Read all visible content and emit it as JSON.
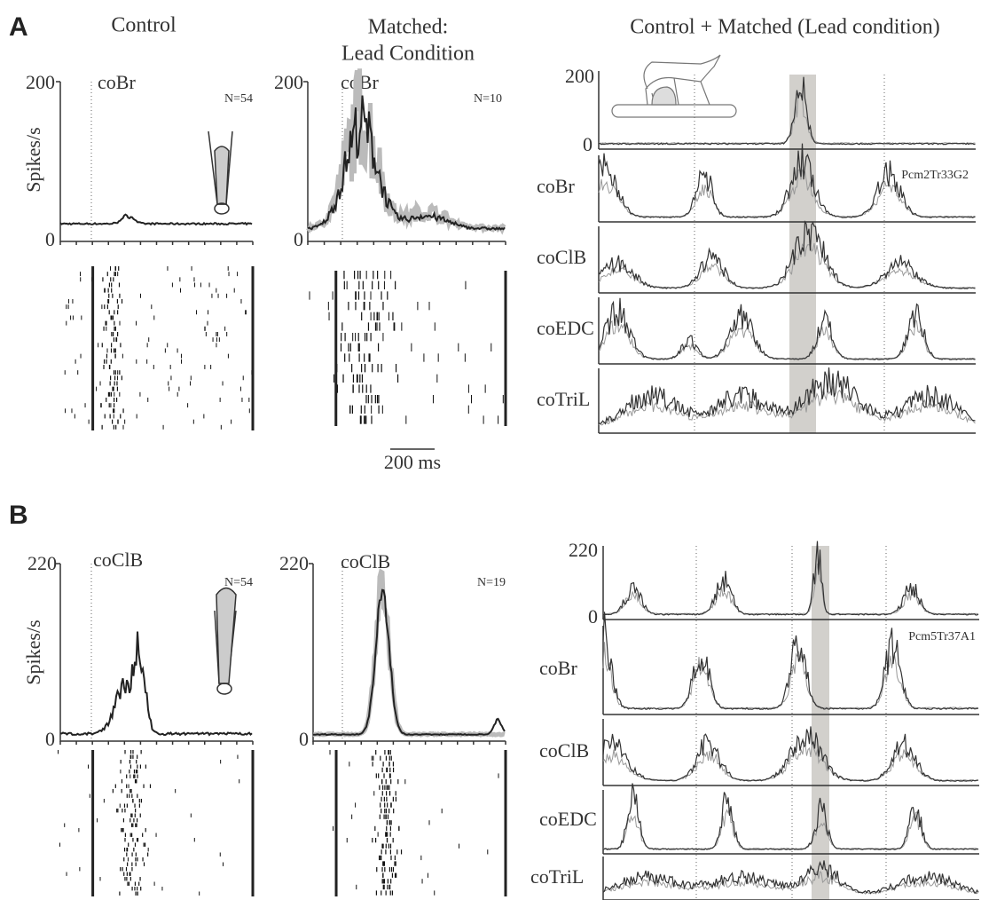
{
  "panels": [
    {
      "label": "A",
      "control": {
        "title": "Control",
        "ylabel": "Spikes/s",
        "ytick_top": "200",
        "ytick_bottom": "0",
        "muscle": "coBr",
        "n": "N=54"
      },
      "matched": {
        "title_line1": "Matched:",
        "title_line2": "Lead Condition",
        "ytick_top": "200",
        "ytick_bottom": "0",
        "muscle": "coBr",
        "n": "N=10",
        "scale_bar": "200 ms"
      },
      "combined": {
        "title": "Control + Matched (Lead condition)",
        "ytick_top": "200",
        "ytick_bottom": "0",
        "cell_id": "Pcm2Tr33G2",
        "emg": [
          "coBr",
          "coClB",
          "coEDC",
          "coTriL"
        ]
      }
    },
    {
      "label": "B",
      "control": {
        "ylabel": "Spikes/s",
        "ytick_top": "220",
        "ytick_bottom": "0",
        "muscle": "coClB",
        "n": "N=54"
      },
      "matched": {
        "ytick_top": "220",
        "ytick_bottom": "0",
        "muscle": "coClB",
        "n": "N=19"
      },
      "combined": {
        "ytick_top": "220",
        "ytick_bottom": "0",
        "cell_id": "Pcm5Tr37A1",
        "emg": [
          "coBr",
          "coClB",
          "coEDC",
          "coTriL"
        ]
      }
    }
  ]
}
